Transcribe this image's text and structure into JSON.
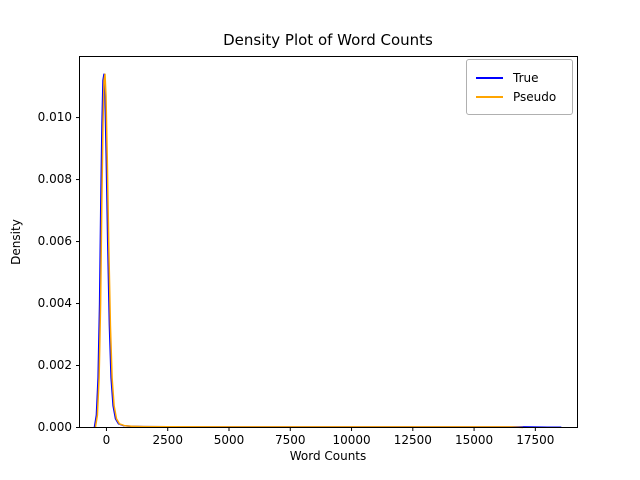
{
  "chart_data": {
    "type": "line",
    "title": "Density Plot of Word Counts",
    "xlabel": "Word Counts",
    "ylabel": "Density",
    "xlim": [
      -1100,
      19220
    ],
    "ylim": [
      0,
      0.01197
    ],
    "grid": false,
    "xticks": [
      0,
      2500,
      5000,
      7500,
      10000,
      12500,
      15000,
      17500
    ],
    "xtick_labels": [
      "0",
      "2500",
      "5000",
      "7500",
      "10000",
      "12500",
      "15000",
      "17500"
    ],
    "yticks": [
      0.0,
      0.002,
      0.004,
      0.006,
      0.008,
      0.01
    ],
    "ytick_labels": [
      "0.000",
      "0.002",
      "0.004",
      "0.006",
      "0.008",
      "0.010"
    ],
    "legend": {
      "position": "upper right",
      "entries": [
        {
          "label": "True",
          "color": "#0000ff"
        },
        {
          "label": "Pseudo",
          "color": "#ffa500"
        }
      ]
    },
    "peak": {
      "x": -80,
      "density": 0.0114
    },
    "series": [
      {
        "name": "True",
        "color": "#0000ff",
        "x": [
          -490,
          -410,
          -340,
          -280,
          -230,
          -180,
          -140,
          -100,
          -60,
          -10,
          50,
          120,
          190,
          270,
          370,
          490,
          690,
          990,
          1490,
          2490,
          5000,
          8000,
          12000,
          15000,
          17000,
          18000,
          18560
        ],
        "y": [
          0.0,
          0.0004,
          0.0016,
          0.004,
          0.0072,
          0.0098,
          0.0112,
          0.0114,
          0.0107,
          0.0088,
          0.006,
          0.0033,
          0.0016,
          0.0007,
          0.00028,
          0.00012,
          6e-05,
          4e-05,
          3e-05,
          2.5e-05,
          2e-05,
          2e-05,
          2e-05,
          2e-05,
          1.8e-05,
          1e-05,
          5e-06
        ]
      },
      {
        "name": "Pseudo",
        "color": "#ffa500",
        "x": [
          -450,
          -370,
          -300,
          -240,
          -190,
          -140,
          -100,
          -60,
          -20,
          30,
          90,
          160,
          230,
          310,
          410,
          530,
          730,
          1030,
          1530,
          2530,
          5000,
          8000,
          12000,
          15000,
          16500,
          17000
        ],
        "y": [
          0.0,
          0.0004,
          0.0016,
          0.004,
          0.0072,
          0.0098,
          0.0112,
          0.0114,
          0.0107,
          0.0088,
          0.006,
          0.0033,
          0.0016,
          0.0007,
          0.00028,
          0.00012,
          6e-05,
          4e-05,
          3e-05,
          2.5e-05,
          2e-05,
          2e-05,
          2e-05,
          2e-05,
          2e-05,
          0.0
        ]
      }
    ]
  }
}
